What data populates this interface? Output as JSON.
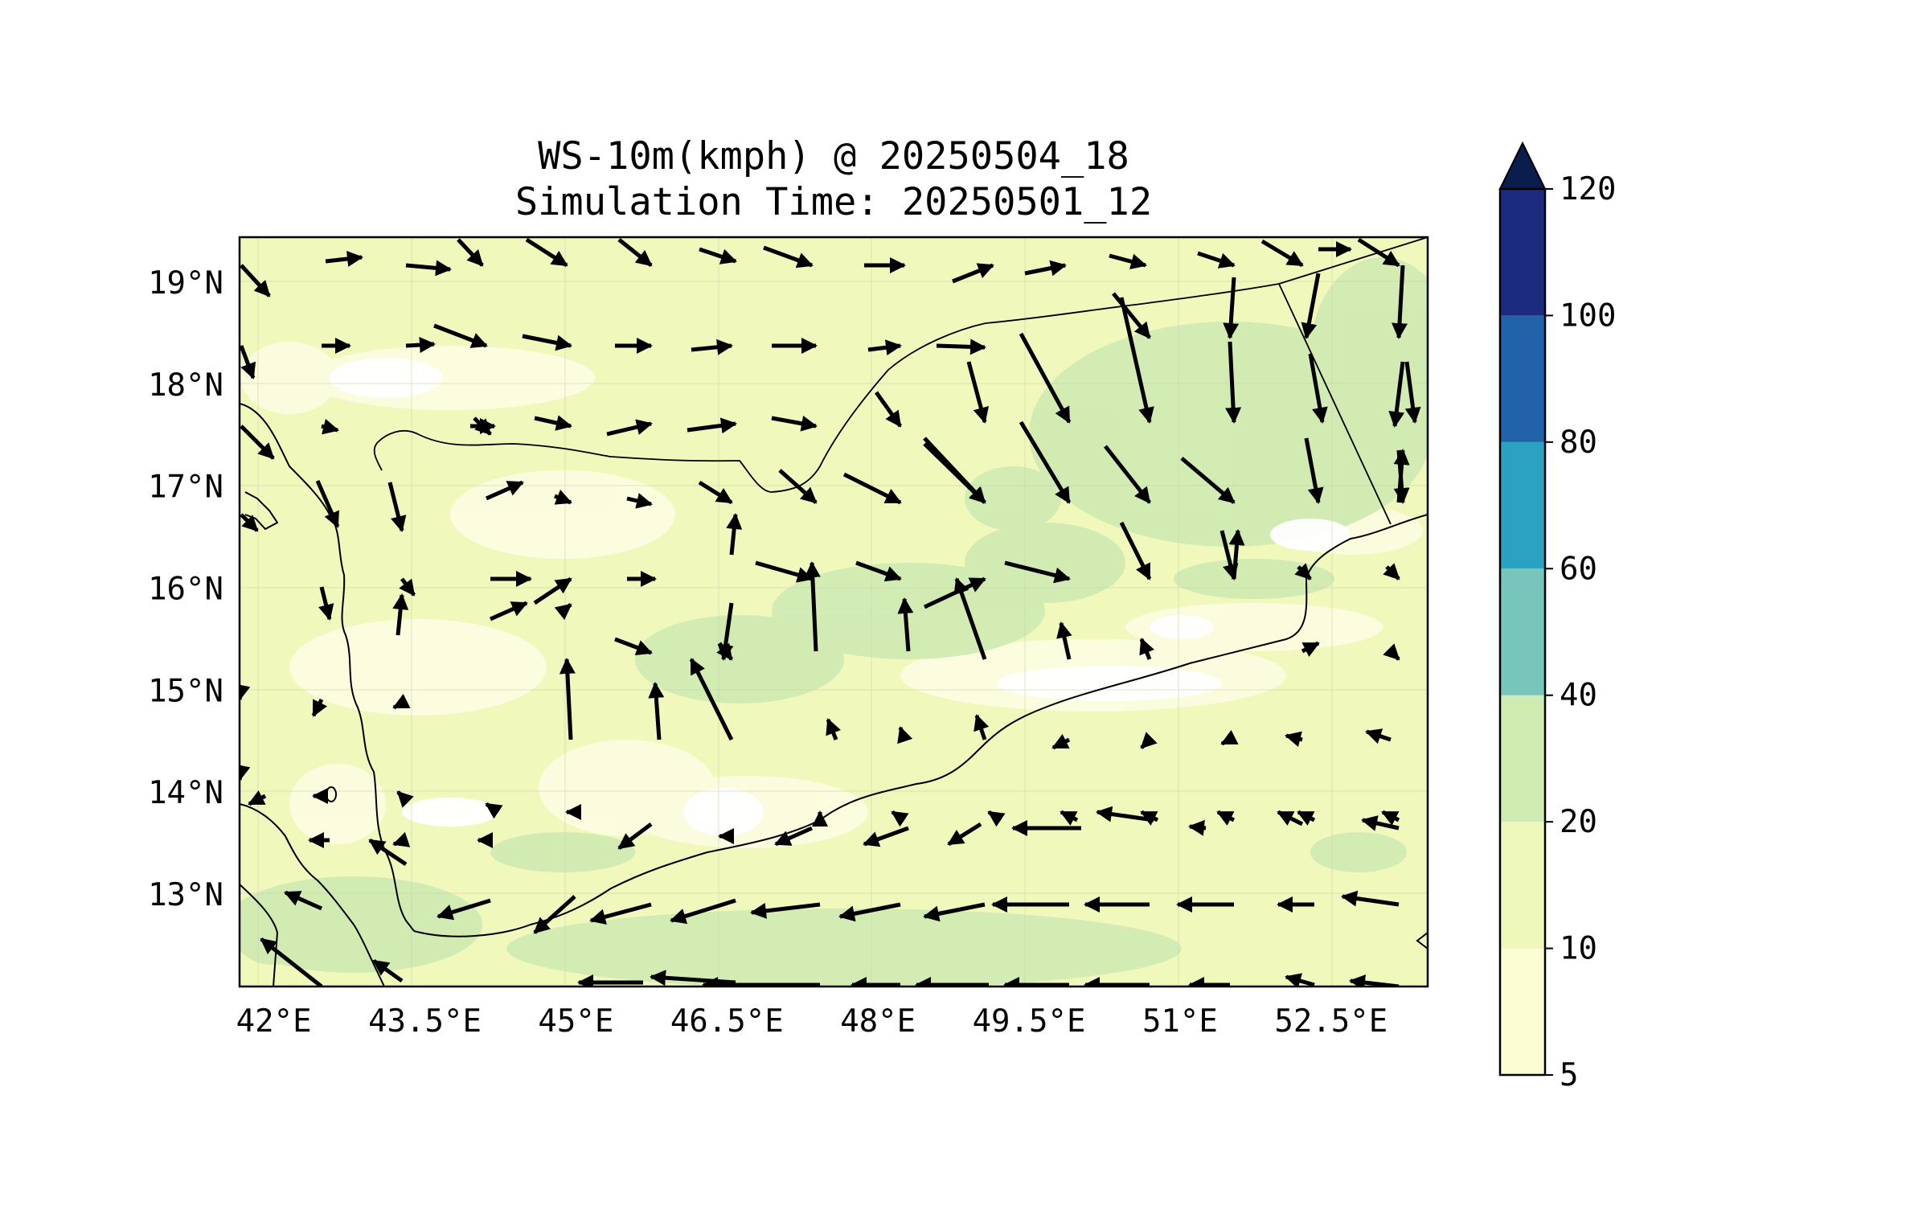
{
  "title_line1": "WS-10m(kmph) @ 20250504_18",
  "title_line2": "Simulation Time: 20250501_12",
  "map": {
    "lon_range": [
      41.5,
      53.3
    ],
    "lat_range": [
      12.1,
      19.45
    ],
    "lon_ticks": [
      42,
      43.5,
      45,
      46.5,
      48,
      49.5,
      51,
      52.5
    ],
    "lon_tick_labels": [
      "42°E",
      "43.5°E",
      "45°E",
      "46.5°E",
      "48°E",
      "49.5°E",
      "51°E",
      "52.5°E"
    ],
    "lat_ticks": [
      19,
      18,
      17,
      16,
      15,
      14,
      13
    ],
    "lat_tick_labels": [
      "19°N",
      "18°N",
      "17°N",
      "16°N",
      "15°N",
      "14°N",
      "13°N"
    ],
    "background_class_color": "#f0f8bc"
  },
  "colorbar": {
    "bounds": [
      5,
      10,
      20,
      40,
      60,
      80,
      100,
      120
    ],
    "labels": [
      "5",
      "10",
      "20",
      "40",
      "60",
      "80",
      "100",
      "120"
    ],
    "colors": [
      "#fbfdd2",
      "#eef8ba",
      "#cfebb2",
      "#78c6bb",
      "#2ba2c1",
      "#2262a8",
      "#1c2b7f"
    ],
    "extend_color": "#0b1d4f",
    "extend": "max"
  }
}
